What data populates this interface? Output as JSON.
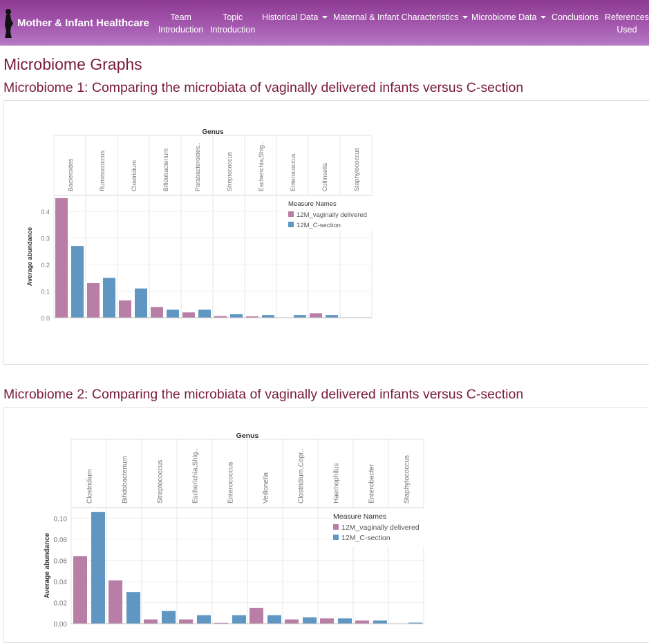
{
  "navbar": {
    "brand": "Mother & Infant Healthcare",
    "items": [
      {
        "line1": "Team",
        "line2": "Introduction"
      },
      {
        "line1": "Topic",
        "line2": "Introduction"
      },
      {
        "label": "Historical Data"
      },
      {
        "label": "Maternal & Infant Characteristics"
      },
      {
        "label": "Microbiome Data"
      },
      {
        "label": "Conclusions"
      },
      {
        "line1": "References",
        "line2": "Used"
      }
    ]
  },
  "page_title": "Microbiome Graphs",
  "sections": [
    {
      "title": "Microbiome 1: Comparing the microbiata of vaginally delivered infants versus C-section"
    },
    {
      "title": "Microbiome 2: Comparing the microbiata of vaginally delivered infants versus C-section"
    }
  ],
  "colors": {
    "vaginal": "#b97ea6",
    "csection": "#5f97c2",
    "title": "#7a1b3f",
    "navbar": "#9a4aa3"
  },
  "chart_data": [
    {
      "type": "bar",
      "title": "Genus",
      "ylabel": "Average abundance",
      "xlabel": "",
      "yticks": [
        "0.0",
        "0.1",
        "0.2",
        "0.3",
        "0.4"
      ],
      "ytick_values": [
        0,
        0.1,
        0.2,
        0.3,
        0.4
      ],
      "ylim": [
        0,
        0.46
      ],
      "grid": true,
      "legend_position": "top-right",
      "legend_title": "Measure Names",
      "categories": [
        "Bacteroides",
        "Ruminococcus",
        "Clostridium",
        "Bifidobacterium",
        "Parabacteroides..",
        "Streptococcus",
        "Escherichia,Shig..",
        "Enterococcus",
        "Collinsella",
        "Staphylococcus"
      ],
      "series": [
        {
          "name": "12M_vaginally delivered",
          "values": [
            0.45,
            0.13,
            0.065,
            0.04,
            0.02,
            0.006,
            0.005,
            0.0,
            0.017,
            0.0
          ]
        },
        {
          "name": "12M_C-section",
          "values": [
            0.27,
            0.15,
            0.11,
            0.03,
            0.03,
            0.013,
            0.01,
            0.01,
            0.01,
            0.0
          ]
        }
      ]
    },
    {
      "type": "bar",
      "title": "Genus",
      "ylabel": "Average abundance",
      "xlabel": "",
      "yticks": [
        "0.00",
        "0.02",
        "0.04",
        "0.06",
        "0.08",
        "0.10"
      ],
      "ytick_values": [
        0,
        0.02,
        0.04,
        0.06,
        0.08,
        0.1
      ],
      "ylim": [
        0,
        0.11
      ],
      "grid": true,
      "legend_position": "top-right",
      "legend_title": "Measure Names",
      "categories": [
        "Clostridium",
        "Bifidobacterium",
        "Streptococcus",
        "Escherichia,Shig..",
        "Enterococcus",
        "Veillonella",
        "Clostridium,Copr..",
        "Haemophilus",
        "Enterobacter",
        "Staphylococcus"
      ],
      "series": [
        {
          "name": "12M_vaginally delivered",
          "values": [
            0.064,
            0.041,
            0.004,
            0.004,
            0.0008,
            0.015,
            0.004,
            0.005,
            0.003,
            0.0
          ]
        },
        {
          "name": "12M_C-section",
          "values": [
            0.106,
            0.03,
            0.012,
            0.008,
            0.008,
            0.008,
            0.006,
            0.005,
            0.003,
            0.001
          ]
        }
      ]
    }
  ]
}
